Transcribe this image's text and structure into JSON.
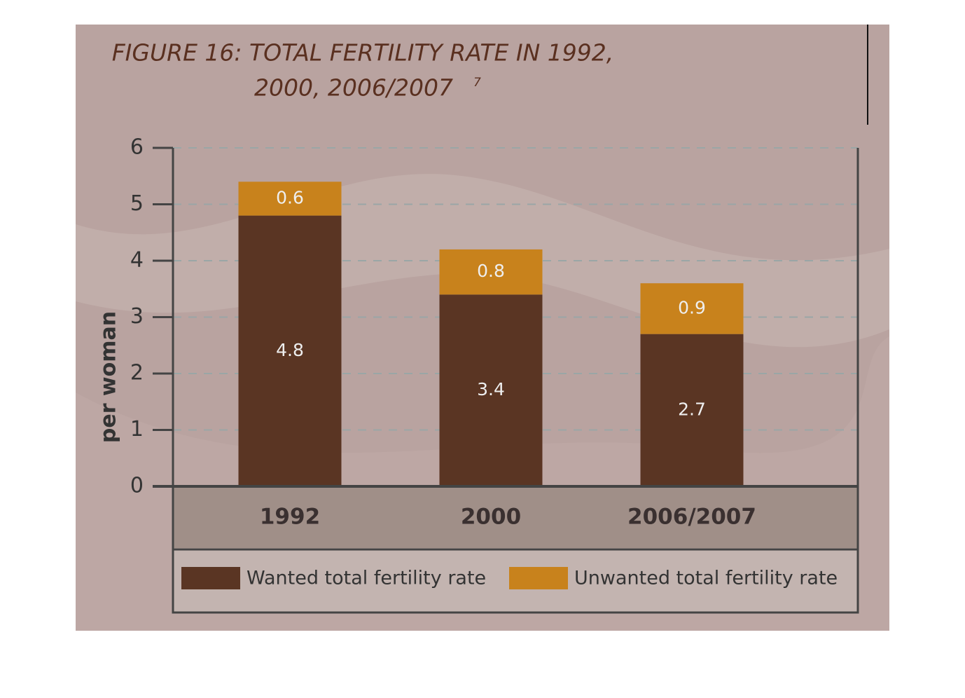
{
  "chart_data": {
    "type": "stacked_bar",
    "title": [
      "FIGURE 16: TOTAL FERTILITY RATE IN 1992,",
      "2000, 2006/2007"
    ],
    "title_note": "7",
    "ylabel": "per woman",
    "categories": [
      "1992",
      "2000",
      "2006/2007"
    ],
    "series": [
      {
        "name": "Wanted total fertility rate",
        "color": "#5a3523",
        "values": [
          4.8,
          3.4,
          2.7
        ]
      },
      {
        "name": "Unwanted total fertility rate",
        "color": "#c8821c",
        "values": [
          0.6,
          0.8,
          0.9
        ]
      }
    ],
    "ylim": [
      0,
      6
    ],
    "yticks": [
      0,
      1,
      2,
      3,
      4,
      5,
      6
    ],
    "grid": true
  }
}
